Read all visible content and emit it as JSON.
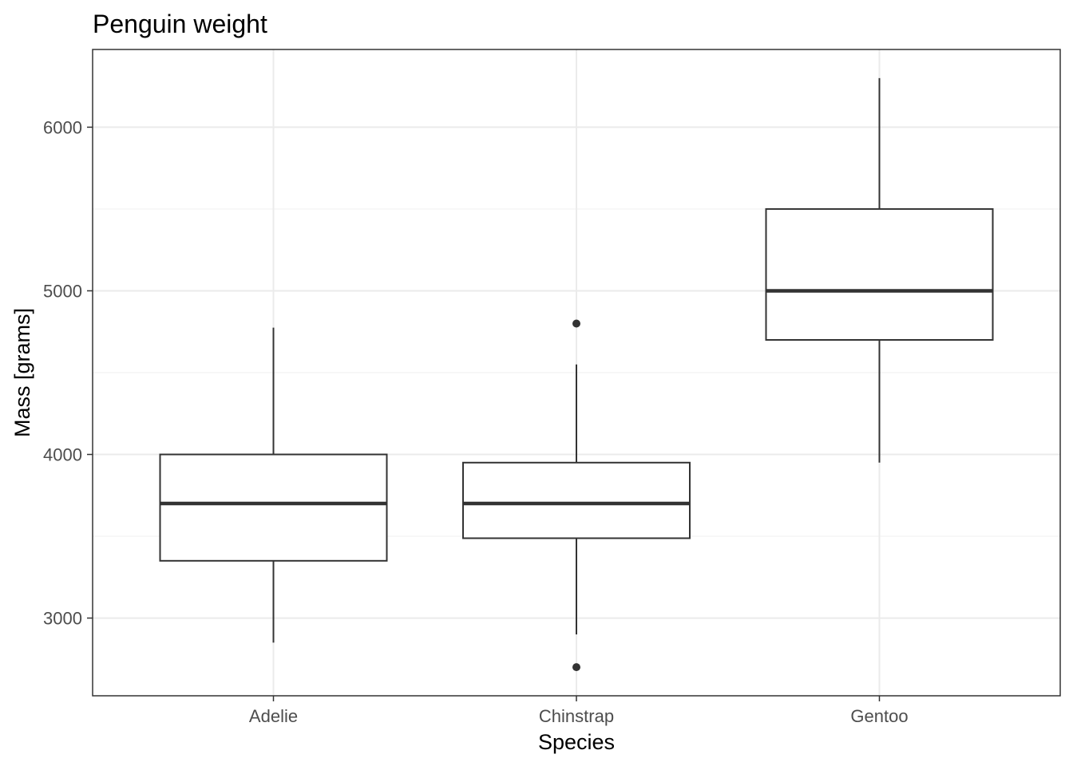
{
  "chart_data": {
    "type": "boxplot",
    "title": "Penguin weight",
    "xlabel": "Species",
    "ylabel": "Mass [grams]",
    "categories": [
      "Adelie",
      "Chinstrap",
      "Gentoo"
    ],
    "ylim": [
      2525,
      6475
    ],
    "yticks": [
      3000,
      4000,
      5000,
      6000
    ],
    "ytick_labels": [
      "3000",
      "4000",
      "5000",
      "6000"
    ],
    "grid": true,
    "boxes": [
      {
        "category": "Adelie",
        "whisker_low": 2850,
        "q1": 3350,
        "median": 3700,
        "q3": 4000,
        "whisker_high": 4775,
        "outliers": []
      },
      {
        "category": "Chinstrap",
        "whisker_low": 2900,
        "q1": 3488,
        "median": 3700,
        "q3": 3950,
        "whisker_high": 4550,
        "outliers": [
          2700,
          4800
        ]
      },
      {
        "category": "Gentoo",
        "whisker_low": 3950,
        "q1": 4700,
        "median": 5000,
        "q3": 5500,
        "whisker_high": 6300,
        "outliers": []
      }
    ],
    "colors": {
      "box_line": "#333333",
      "grid_major": "#ebebeb",
      "grid_minor": "#f2f2f2",
      "panel_border": "#333333"
    }
  }
}
